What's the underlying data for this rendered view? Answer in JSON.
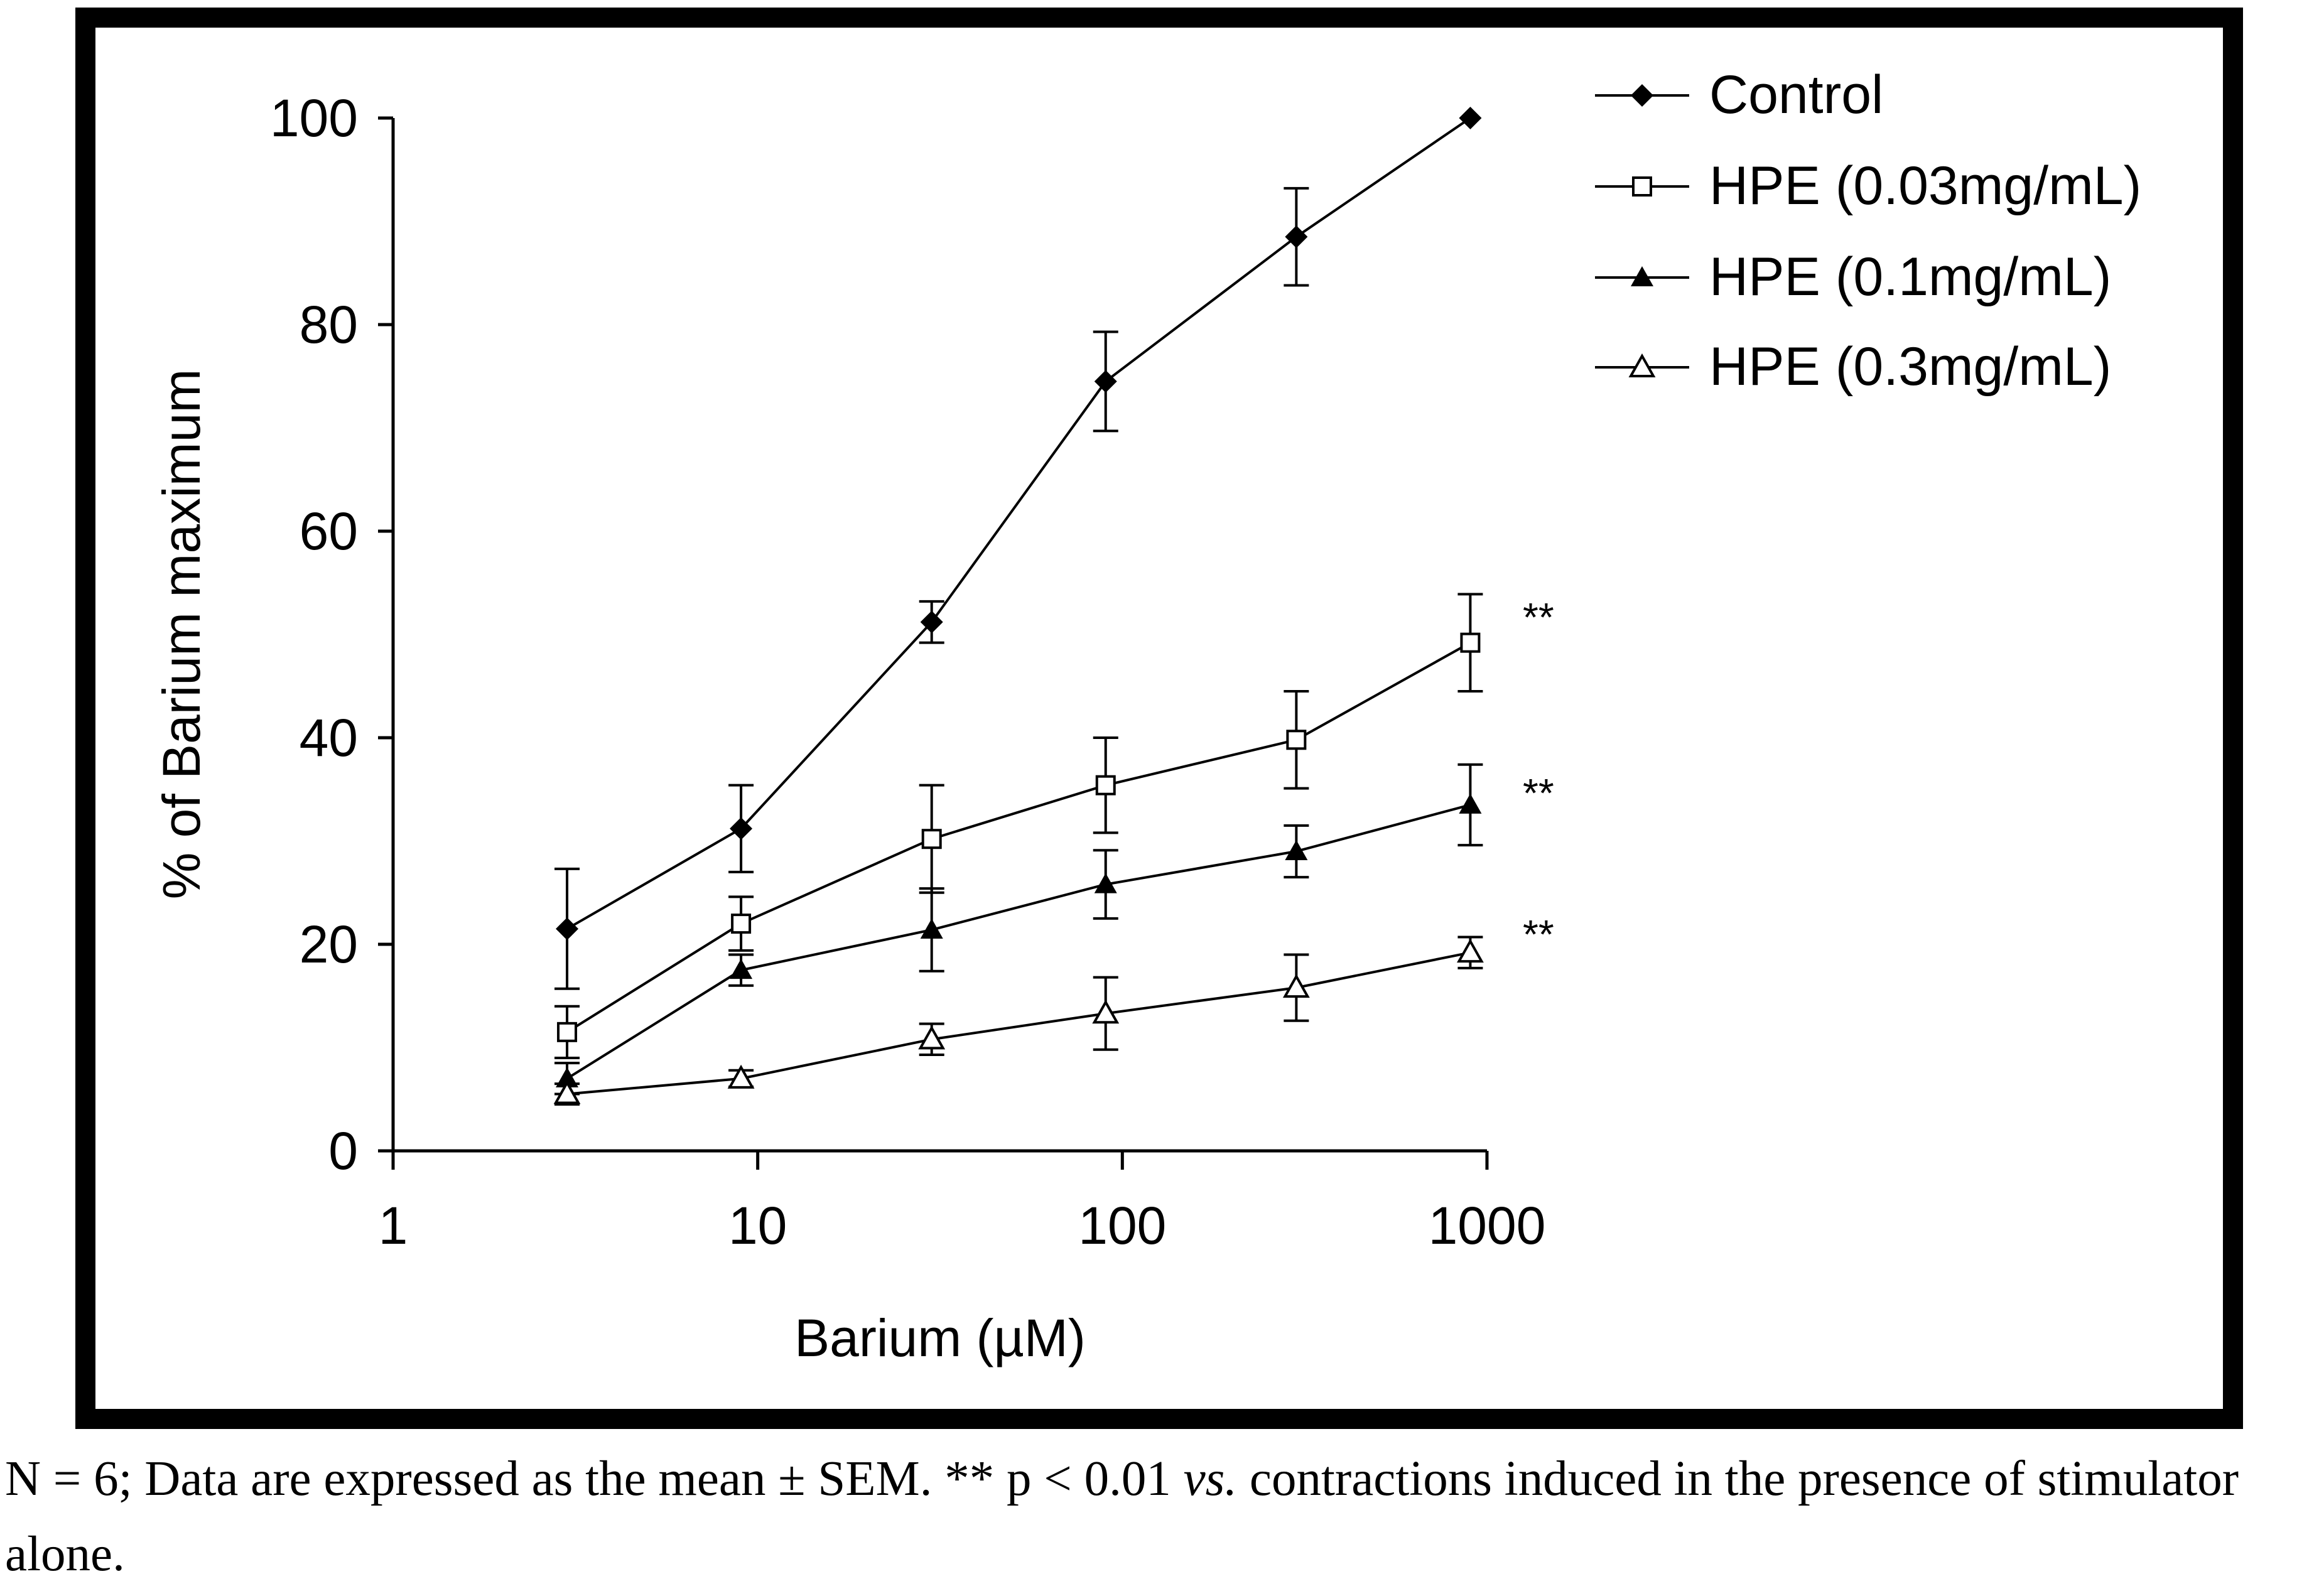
{
  "chart_data": {
    "type": "line",
    "xscale": "log",
    "xlabel": "Barium (µM)",
    "ylabel": "% of Barium maximum",
    "xlim": [
      1,
      1000
    ],
    "ylim": [
      0,
      100
    ],
    "xticks": [
      "1",
      "10",
      "100",
      "1000"
    ],
    "yticks": [
      "0",
      "20",
      "40",
      "60",
      "80",
      "100"
    ],
    "x": [
      3,
      9,
      30,
      90,
      300,
      900
    ],
    "series": [
      {
        "name": "Control",
        "marker": "diamond-filled",
        "values": [
          21.5,
          31.2,
          51.2,
          74.5,
          88.5,
          100
        ],
        "errors": [
          5.8,
          4.2,
          2.0,
          4.8,
          4.7,
          0
        ]
      },
      {
        "name": "HPE (0.03mg/mL)",
        "marker": "square-open",
        "values": [
          11.5,
          22.0,
          30.2,
          35.4,
          39.8,
          49.2
        ],
        "errors": [
          2.5,
          2.6,
          5.2,
          4.6,
          4.7,
          4.7
        ]
      },
      {
        "name": "HPE (0.1mg/mL)",
        "marker": "triangle-filled",
        "values": [
          7.0,
          17.5,
          21.4,
          25.8,
          29.0,
          33.5
        ],
        "errors": [
          1.5,
          1.5,
          4.0,
          3.3,
          2.5,
          3.9
        ]
      },
      {
        "name": "HPE (0.3mg/mL)",
        "marker": "triangle-open",
        "values": [
          5.5,
          7.0,
          10.8,
          13.3,
          15.8,
          19.2
        ],
        "errors": [
          1.0,
          0.8,
          1.5,
          3.5,
          3.2,
          1.5
        ]
      }
    ],
    "annotations": [
      "**",
      "**",
      "**"
    ]
  },
  "caption": {
    "part1": "N = 6; Data are expressed as the mean ± SEM. ** p < 0.01 ",
    "vs": "vs.",
    "part2": " contractions induced in the presence of stimulator alone."
  }
}
